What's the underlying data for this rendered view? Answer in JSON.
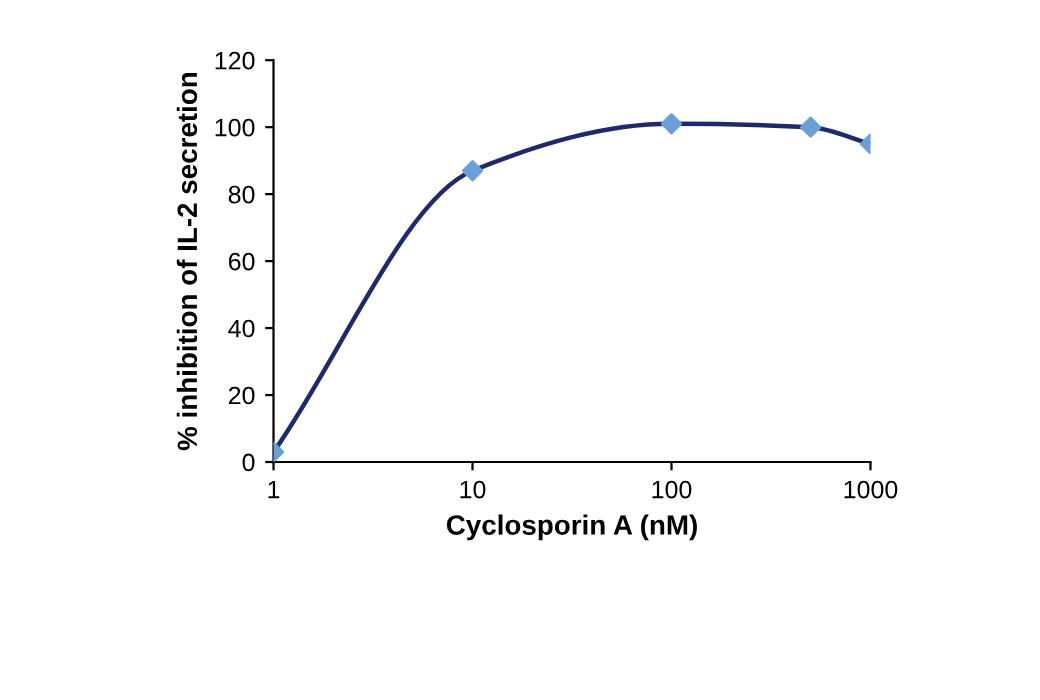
{
  "chart_data": {
    "type": "line",
    "xlabel": "Cyclosporin A (nM)",
    "ylabel": "% inhibition of IL-2 secretion",
    "log": "x",
    "x": [
      1,
      10,
      100,
      500,
      1000
    ],
    "series": [
      {
        "color": "#1f2a6e",
        "values": [
          3,
          87,
          101,
          100,
          95
        ],
        "marker": "none"
      },
      {
        "type": "scatter",
        "color": "#6a9fd8",
        "values": [
          3,
          87,
          101,
          100,
          95
        ],
        "marker": "diamond"
      }
    ],
    "xlim": [
      1,
      1000
    ],
    "xticks": [
      1,
      10,
      100,
      1000
    ],
    "ylim": [
      0,
      120
    ],
    "yticks": [
      0,
      20,
      40,
      60,
      80,
      100,
      120
    ],
    "grid": false,
    "legend": false
  }
}
